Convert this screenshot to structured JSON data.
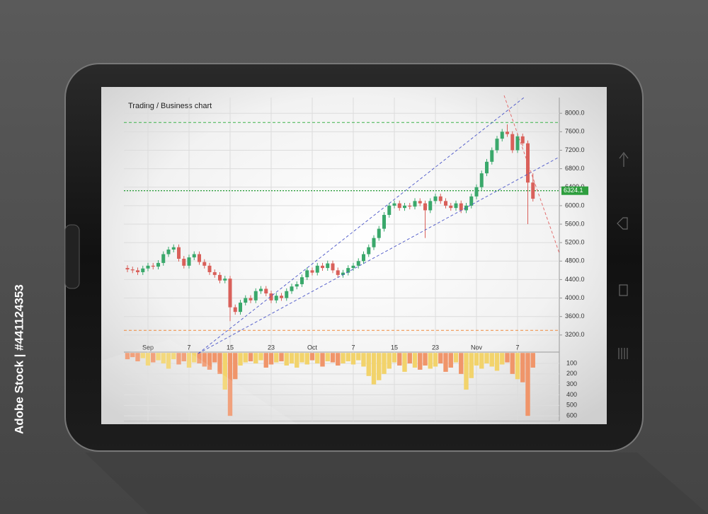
{
  "watermark": "Adobe Stock | #441124353",
  "chart_data": [
    {
      "type": "candlestick",
      "title": "Trading / Business chart",
      "up_color": "#3aa86b",
      "down_color": "#d9605a",
      "open": [
        4650,
        4620,
        4600,
        4560,
        4640,
        4700,
        4680,
        4760,
        4950,
        5050,
        5100,
        4850,
        4700,
        4880,
        4950,
        4780,
        4700,
        4560,
        4500,
        4380,
        4420,
        3800,
        3700,
        3900,
        4000,
        3950,
        4150,
        4200,
        4100,
        3950,
        4050,
        4000,
        4150,
        4250,
        4300,
        4450,
        4600,
        4550,
        4700,
        4650,
        4750,
        4600,
        4500,
        4550,
        4650,
        4700,
        4800,
        4950,
        5100,
        5300,
        5500,
        5800,
        6000,
        6050,
        5950,
        6000,
        5980,
        6100,
        6050,
        5900,
        6100,
        6200,
        6100,
        6000,
        5950,
        6050,
        5900,
        6000,
        6200,
        6400,
        6700,
        6950,
        7200,
        7450,
        7600,
        7550,
        7200,
        7500,
        7350,
        6500
      ],
      "high": [
        4710,
        4680,
        4660,
        4700,
        4760,
        4760,
        4820,
        5010,
        5110,
        5160,
        5160,
        4910,
        4940,
        5010,
        5010,
        4840,
        4760,
        4620,
        4560,
        4480,
        4480,
        3860,
        3960,
        4060,
        4060,
        4210,
        4260,
        4260,
        4160,
        4110,
        4110,
        4210,
        4310,
        4360,
        4510,
        4660,
        4660,
        4760,
        4760,
        4810,
        4810,
        4660,
        4610,
        4710,
        4760,
        4860,
        5010,
        5160,
        5360,
        5560,
        5860,
        6060,
        6110,
        6110,
        6060,
        6060,
        6160,
        6160,
        6110,
        6160,
        6260,
        6260,
        6160,
        6060,
        6110,
        6110,
        6060,
        6260,
        6460,
        6760,
        7010,
        7260,
        7510,
        7660,
        7760,
        7610,
        7560,
        7560,
        7410,
        6700
      ],
      "low": [
        4560,
        4540,
        4500,
        4500,
        4580,
        4620,
        4620,
        4700,
        4890,
        4990,
        4790,
        4640,
        4640,
        4820,
        4720,
        4640,
        4500,
        4440,
        4320,
        4320,
        3500,
        3640,
        3640,
        3840,
        3890,
        3890,
        4090,
        4040,
        3890,
        3890,
        3940,
        3940,
        4090,
        4190,
        4240,
        4390,
        4490,
        4490,
        4590,
        4590,
        4540,
        4440,
        4440,
        4490,
        4590,
        4640,
        4740,
        4890,
        5040,
        5240,
        5440,
        5740,
        5940,
        5890,
        5890,
        5920,
        5920,
        5990,
        5300,
        5840,
        6040,
        6040,
        5940,
        5890,
        5890,
        5840,
        5840,
        5940,
        6140,
        6340,
        6640,
        6890,
        7140,
        7390,
        7490,
        7140,
        7140,
        7290,
        5600,
        6090
      ],
      "close": [
        4620,
        4600,
        4560,
        4640,
        4700,
        4680,
        4760,
        4950,
        5050,
        5100,
        4850,
        4700,
        4880,
        4950,
        4780,
        4700,
        4560,
        4500,
        4380,
        4420,
        3800,
        3700,
        3900,
        4000,
        3950,
        4150,
        4200,
        4100,
        3950,
        4050,
        4000,
        4150,
        4250,
        4300,
        4450,
        4600,
        4550,
        4700,
        4650,
        4750,
        4600,
        4500,
        4550,
        4650,
        4700,
        4800,
        4950,
        5100,
        5300,
        5500,
        5800,
        6000,
        6050,
        5950,
        6000,
        5980,
        6100,
        6050,
        5900,
        6100,
        6200,
        6100,
        6000,
        5950,
        6050,
        5900,
        6000,
        6200,
        6400,
        6700,
        6950,
        7200,
        7450,
        7600,
        7550,
        7200,
        7500,
        7350,
        6500,
        6150
      ],
      "xlim": [
        0,
        79
      ],
      "xticks": [
        {
          "value": 4,
          "label": "Sep"
        },
        {
          "value": 12,
          "label": "7"
        },
        {
          "value": 20,
          "label": "15"
        },
        {
          "value": 28,
          "label": "23"
        },
        {
          "value": 36,
          "label": "Oct"
        },
        {
          "value": 44,
          "label": "7"
        },
        {
          "value": 52,
          "label": "15"
        },
        {
          "value": 60,
          "label": "23"
        },
        {
          "value": 68,
          "label": "Nov"
        },
        {
          "value": 76,
          "label": "7"
        }
      ],
      "ylim": [
        2830,
        8340
      ],
      "yticks": [
        {
          "value": 3200,
          "label": "3200.0"
        },
        {
          "value": 3600,
          "label": "3600.0"
        },
        {
          "value": 4000,
          "label": "4000.0"
        },
        {
          "value": 4400,
          "label": "4400.0"
        },
        {
          "value": 4800,
          "label": "4800.0"
        },
        {
          "value": 5200,
          "label": "5200.0"
        },
        {
          "value": 5600,
          "label": "5600.0"
        },
        {
          "value": 6000,
          "label": "6000.0"
        },
        {
          "value": 6400,
          "label": "6400.0"
        },
        {
          "value": 6800,
          "label": "6800.0"
        },
        {
          "value": 7200,
          "label": "7200.0"
        },
        {
          "value": 7600,
          "label": "7600.0"
        },
        {
          "value": 8000,
          "label": "8000.0"
        }
      ],
      "last_price": 6324.1,
      "last_price_color": "#2e9e3e",
      "levels": [
        {
          "value": 7800,
          "color": "#3cb44a"
        },
        {
          "value": 3300,
          "color": "#f08a3c"
        }
      ],
      "grid": true
    },
    {
      "type": "bar",
      "colors": [
        "#f2d36b",
        "#f0956a"
      ],
      "values": [
        60,
        40,
        80,
        50,
        120,
        90,
        70,
        100,
        150,
        60,
        110,
        80,
        140,
        90,
        100,
        130,
        160,
        90,
        200,
        350,
        600,
        250,
        120,
        90,
        80,
        100,
        70,
        140,
        110,
        90,
        80,
        120,
        100,
        140,
        90,
        110,
        70,
        100,
        130,
        80,
        90,
        120,
        100,
        80,
        110,
        70,
        130,
        220,
        300,
        260,
        200,
        150,
        90,
        120,
        180,
        100,
        140,
        160,
        120,
        150,
        130,
        100,
        180,
        140,
        90,
        200,
        350,
        240,
        120,
        150,
        100,
        130,
        170,
        110,
        90,
        200,
        250,
        280,
        600,
        140
      ],
      "ylim": [
        0,
        650
      ],
      "yticks": [
        100,
        200,
        300,
        400,
        500,
        600
      ],
      "grid": true
    }
  ]
}
